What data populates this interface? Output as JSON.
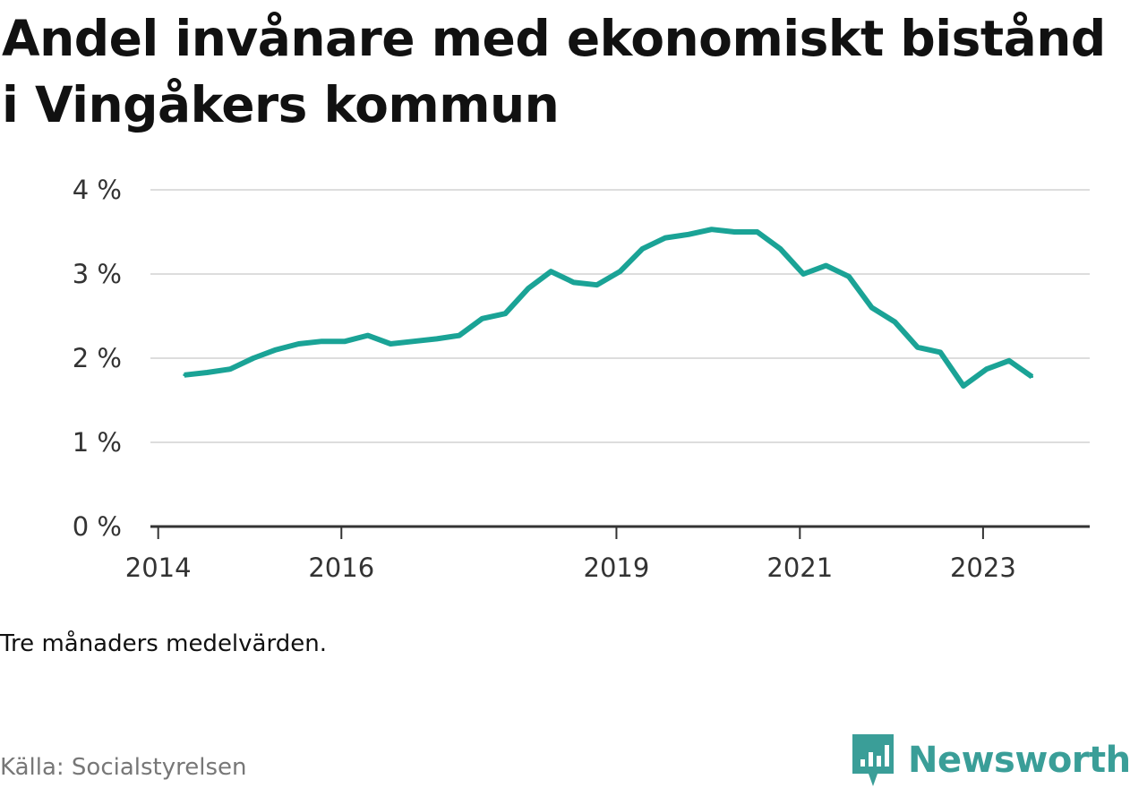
{
  "title": "Andel invånare med ekonomiskt bistånd i Vingåkers kommun",
  "note": "Tre månaders medelvärden.",
  "source": "Källa: Socialstyrelsen",
  "brand": {
    "name": "Newsworthy",
    "icon": "newsworthy-logo-icon",
    "color": "#3a9e98"
  },
  "colors": {
    "line": "#1aa396",
    "grid": "#dddddd",
    "axis": "#333333"
  },
  "chart_data": {
    "type": "line",
    "title": "Andel invånare med ekonomiskt bistånd i Vingåkers kommun",
    "xlabel": "",
    "ylabel": "",
    "ylim": [
      0,
      4
    ],
    "xlim": [
      "2013-12-01",
      "2024-03-01"
    ],
    "yticks": [
      {
        "value": 0,
        "label": "0 %"
      },
      {
        "value": 1,
        "label": "1 %"
      },
      {
        "value": 2,
        "label": "2 %"
      },
      {
        "value": 3,
        "label": "3 %"
      },
      {
        "value": 4,
        "label": "4 %"
      }
    ],
    "xticks": [
      {
        "date": "2014-01-01",
        "label": "2014"
      },
      {
        "date": "2016-01-01",
        "label": "2016"
      },
      {
        "date": "2019-01-01",
        "label": "2019"
      },
      {
        "date": "2021-01-01",
        "label": "2021"
      },
      {
        "date": "2023-01-01",
        "label": "2023"
      }
    ],
    "grid": true,
    "series": [
      {
        "points": [
          {
            "x": "2014-04-15",
            "y": 1.8
          },
          {
            "x": "2014-07-15",
            "y": 1.83
          },
          {
            "x": "2014-10-15",
            "y": 1.87
          },
          {
            "x": "2015-01-15",
            "y": 2.0
          },
          {
            "x": "2015-04-15",
            "y": 2.1
          },
          {
            "x": "2015-07-15",
            "y": 2.17
          },
          {
            "x": "2015-10-15",
            "y": 2.2
          },
          {
            "x": "2016-01-15",
            "y": 2.2
          },
          {
            "x": "2016-04-15",
            "y": 2.27
          },
          {
            "x": "2016-07-15",
            "y": 2.17
          },
          {
            "x": "2016-10-15",
            "y": 2.2
          },
          {
            "x": "2017-01-15",
            "y": 2.23
          },
          {
            "x": "2017-04-15",
            "y": 2.27
          },
          {
            "x": "2017-07-15",
            "y": 2.47
          },
          {
            "x": "2017-10-15",
            "y": 2.53
          },
          {
            "x": "2018-01-15",
            "y": 2.83
          },
          {
            "x": "2018-04-15",
            "y": 3.03
          },
          {
            "x": "2018-07-15",
            "y": 2.9
          },
          {
            "x": "2018-10-15",
            "y": 2.87
          },
          {
            "x": "2019-01-15",
            "y": 3.03
          },
          {
            "x": "2019-04-15",
            "y": 3.3
          },
          {
            "x": "2019-07-15",
            "y": 3.43
          },
          {
            "x": "2019-10-15",
            "y": 3.47
          },
          {
            "x": "2020-01-15",
            "y": 3.53
          },
          {
            "x": "2020-04-15",
            "y": 3.5
          },
          {
            "x": "2020-07-15",
            "y": 3.5
          },
          {
            "x": "2020-10-15",
            "y": 3.3
          },
          {
            "x": "2021-01-15",
            "y": 3.0
          },
          {
            "x": "2021-04-15",
            "y": 3.1
          },
          {
            "x": "2021-07-15",
            "y": 2.97
          },
          {
            "x": "2021-10-15",
            "y": 2.6
          },
          {
            "x": "2022-01-15",
            "y": 2.43
          },
          {
            "x": "2022-04-15",
            "y": 2.13
          },
          {
            "x": "2022-07-15",
            "y": 2.07
          },
          {
            "x": "2022-10-15",
            "y": 1.67
          },
          {
            "x": "2023-01-15",
            "y": 1.87
          },
          {
            "x": "2023-04-15",
            "y": 1.97
          },
          {
            "x": "2023-07-15",
            "y": 1.78
          }
        ]
      }
    ]
  }
}
